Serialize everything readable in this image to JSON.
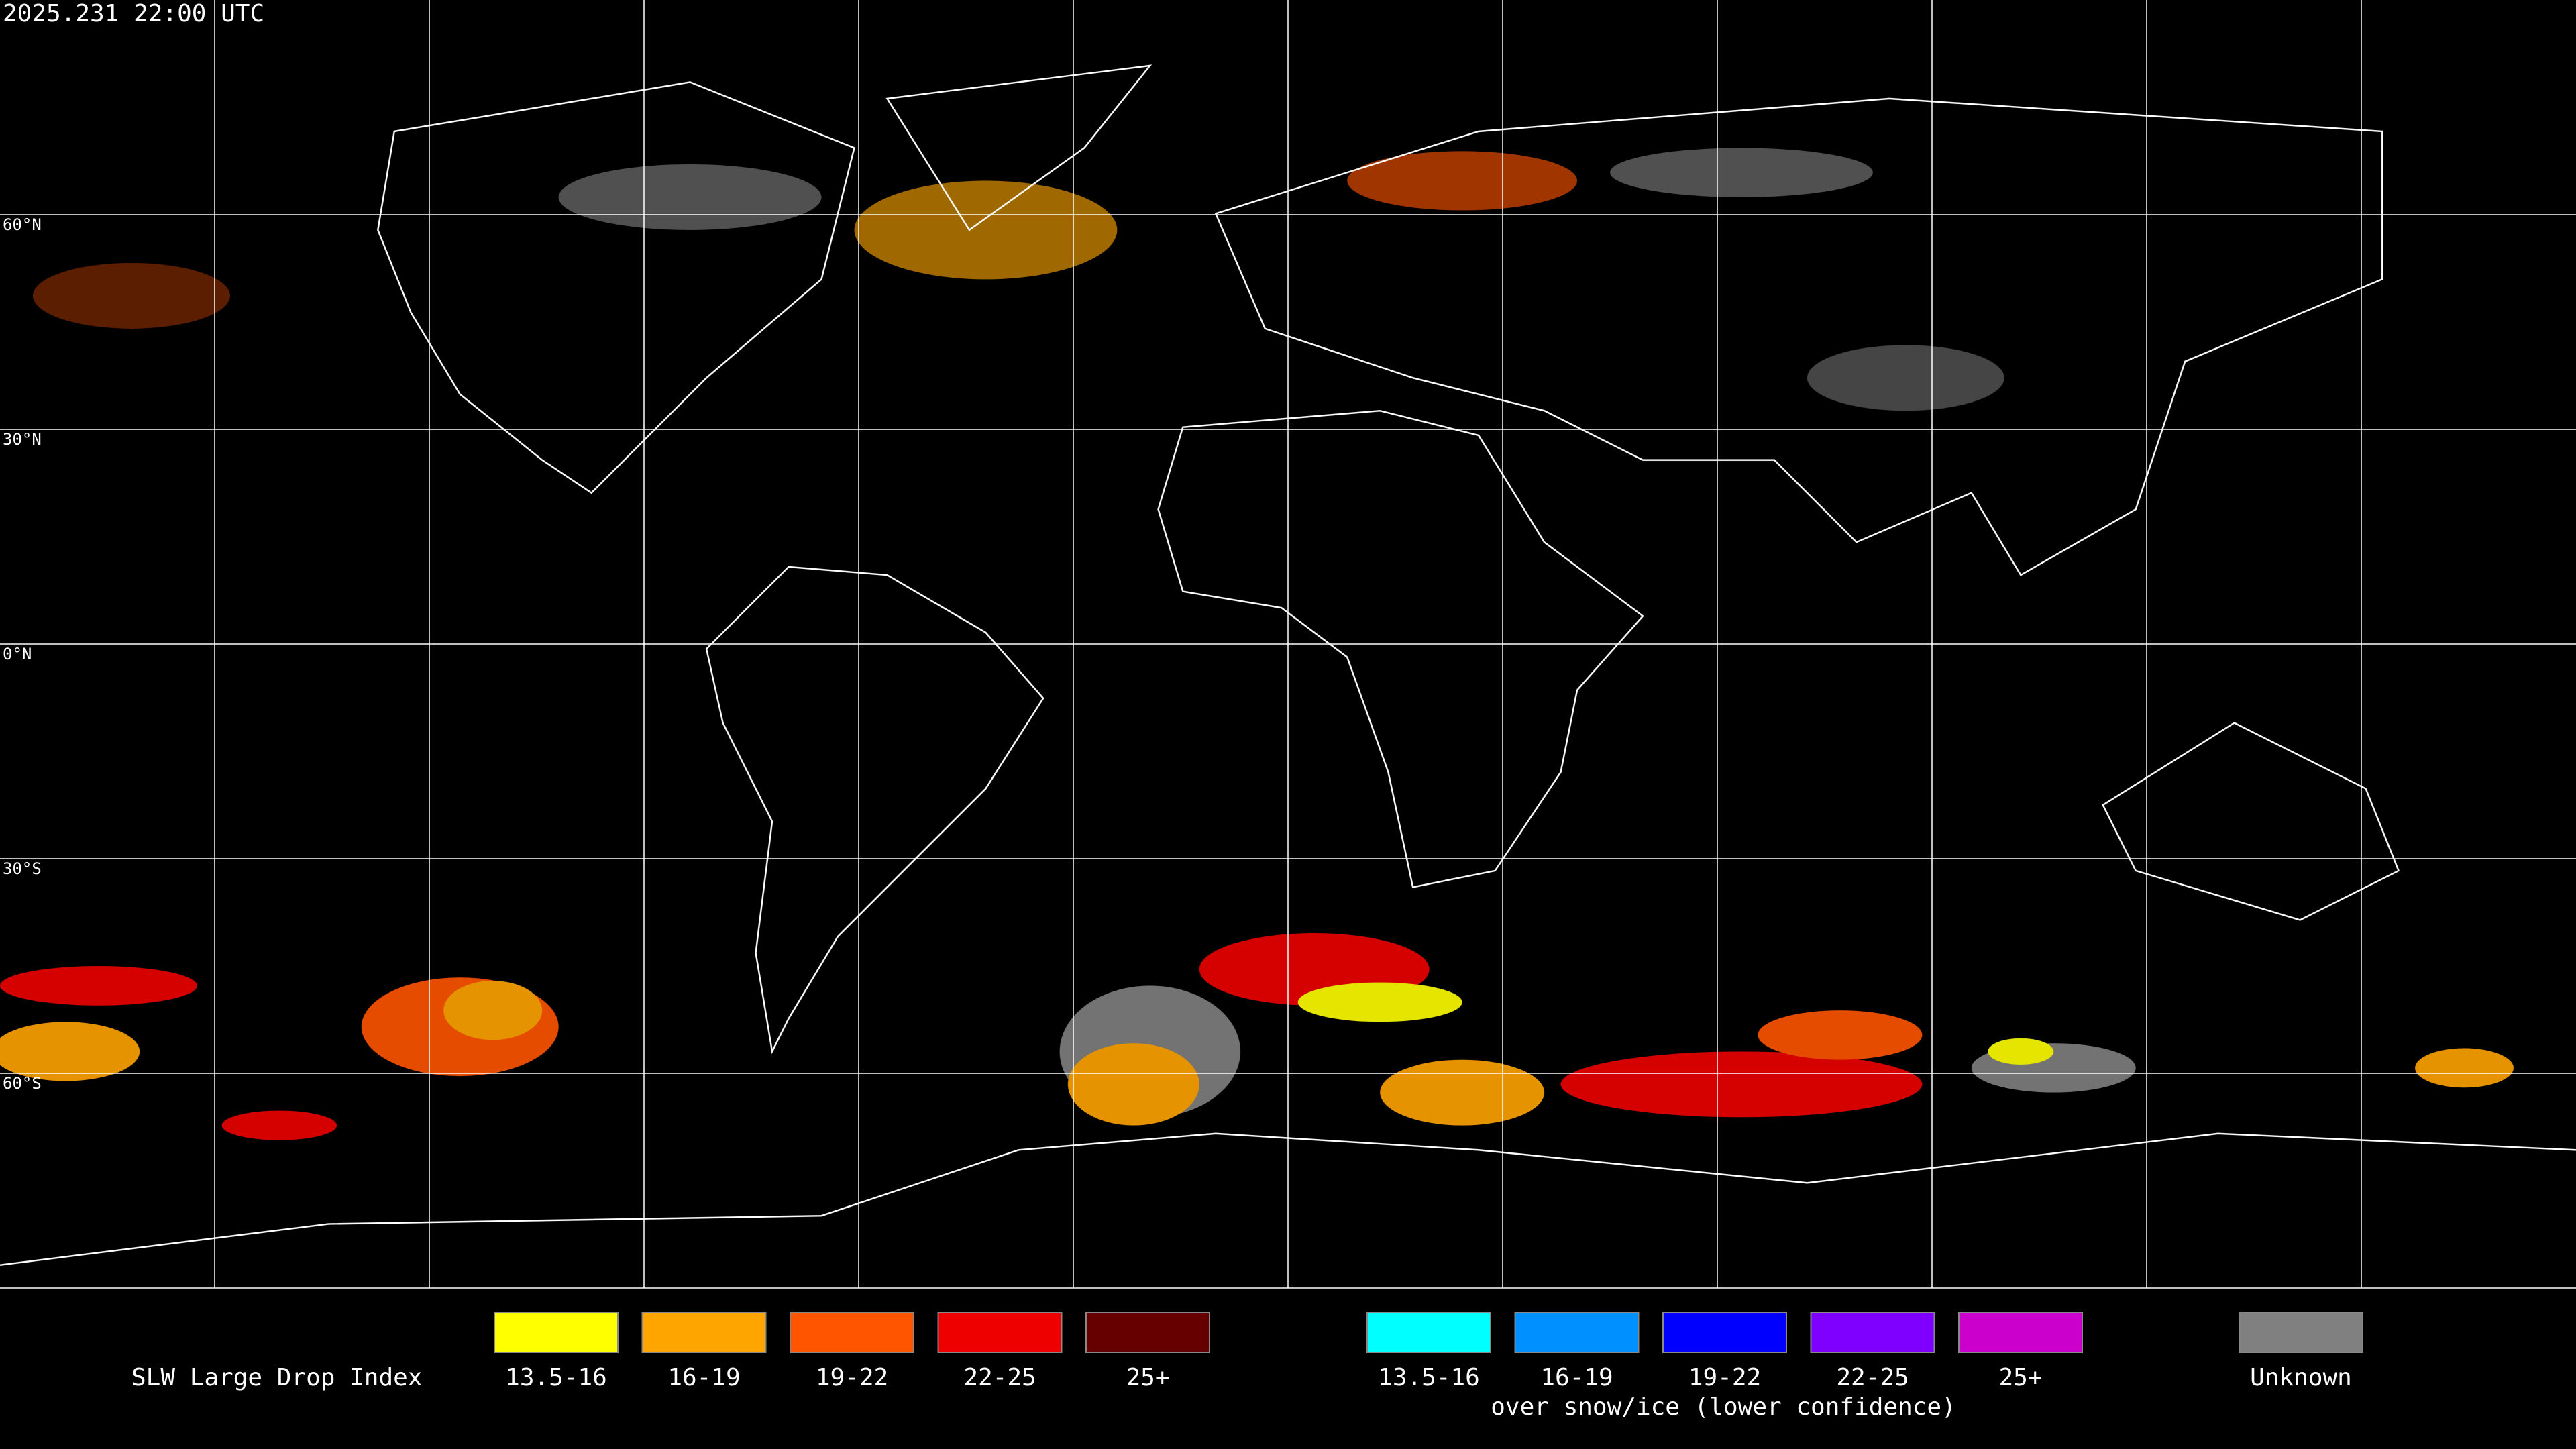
{
  "header": {
    "timestamp": "2025.231 22:00 UTC"
  },
  "map": {
    "latitude_labels": [
      "60°N",
      "30°N",
      "0°N",
      "30°S",
      "60°S"
    ]
  },
  "legend": {
    "title": "SLW Large Drop Index",
    "items": [
      {
        "label": "13.5-16",
        "color": "#ffff00"
      },
      {
        "label": "16-19",
        "color": "#ffa500"
      },
      {
        "label": "19-22",
        "color": "#ff5500"
      },
      {
        "label": "22-25",
        "color": "#ee0000"
      },
      {
        "label": "25+",
        "color": "#660000"
      }
    ],
    "snow_items": [
      {
        "label": "13.5-16",
        "color": "#00ffff"
      },
      {
        "label": "16-19",
        "color": "#0090ff"
      },
      {
        "label": "19-22",
        "color": "#0000ff"
      },
      {
        "label": "22-25",
        "color": "#8000ff"
      },
      {
        "label": "25+",
        "color": "#cc00cc"
      }
    ],
    "snow_caption": "over snow/ice (lower confidence)",
    "unknown": {
      "label": "Unknown",
      "color": "#808080"
    }
  }
}
